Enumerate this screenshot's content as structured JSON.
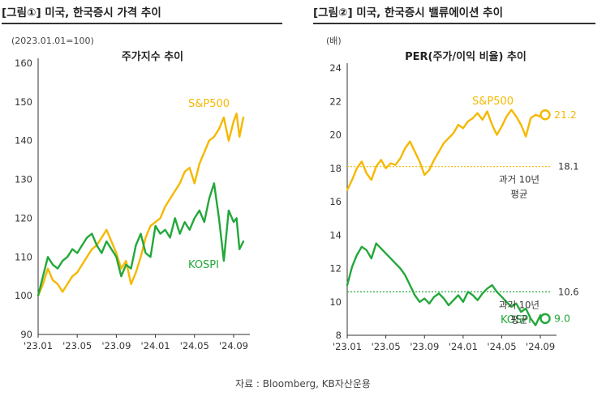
{
  "left_panel": {
    "title": "[그림①] 미국, 한국증시 가격 추이",
    "chart_data": {
      "type": "line",
      "title": "주가지수 추이",
      "unit_note": "(2023.01.01=100)",
      "ylim": [
        90,
        160
      ],
      "yticks": [
        90,
        100,
        110,
        120,
        130,
        140,
        150,
        160
      ],
      "xlim": [
        0,
        21
      ],
      "xticks": [
        {
          "x": 0,
          "label": "'23.01"
        },
        {
          "x": 4,
          "label": "'23.05"
        },
        {
          "x": 8,
          "label": "'23.09"
        },
        {
          "x": 12,
          "label": "'24.01"
        },
        {
          "x": 16,
          "label": "'24.05"
        },
        {
          "x": 20,
          "label": "'24.09"
        }
      ],
      "grid": false,
      "series": [
        {
          "name": "S&P500",
          "color": "#f5b800",
          "x": [
            0,
            0.5,
            1,
            1.5,
            2,
            2.5,
            3,
            3.5,
            4,
            4.5,
            5,
            5.5,
            6,
            6.5,
            7,
            7.5,
            8,
            8.5,
            9,
            9.5,
            10,
            10.5,
            11,
            11.5,
            12,
            12.5,
            13,
            13.5,
            14,
            14.5,
            15,
            15.5,
            16,
            16.5,
            17,
            17.5,
            18,
            18.5,
            19,
            19.5,
            20,
            20.3,
            20.6,
            21
          ],
          "values": [
            100,
            103,
            107,
            104,
            103,
            101,
            103,
            105,
            106,
            108,
            110,
            112,
            113,
            115,
            117,
            114,
            111,
            107,
            109,
            103,
            106,
            110,
            115,
            118,
            119,
            120,
            123,
            125,
            127,
            129,
            132,
            133,
            129,
            134,
            137,
            140,
            141,
            143,
            146,
            140,
            145,
            147,
            141,
            146
          ]
        },
        {
          "name": "KOSPI",
          "color": "#22a83a",
          "x": [
            0,
            0.5,
            1,
            1.5,
            2,
            2.5,
            3,
            3.5,
            4,
            4.5,
            5,
            5.5,
            6,
            6.5,
            7,
            7.5,
            8,
            8.5,
            9,
            9.5,
            10,
            10.5,
            11,
            11.5,
            12,
            12.5,
            13,
            13.5,
            14,
            14.5,
            15,
            15.5,
            16,
            16.5,
            17,
            17.5,
            18,
            18.5,
            19,
            19.5,
            20,
            20.3,
            20.6,
            21
          ],
          "values": [
            100,
            105,
            110,
            108,
            107,
            109,
            110,
            112,
            111,
            113,
            115,
            116,
            113,
            111,
            114,
            112,
            110,
            105,
            108,
            107,
            113,
            116,
            111,
            110,
            118,
            116,
            117,
            115,
            120,
            116,
            119,
            117,
            120,
            122,
            119,
            125,
            129,
            120,
            109,
            122,
            119,
            120,
            112,
            114
          ]
        }
      ]
    }
  },
  "right_panel": {
    "title": "[그림②] 미국, 한국증시 밸류에이션 추이",
    "chart_data": {
      "type": "line",
      "title": "PER(주가/이익 비율) 추이",
      "unit_note": "(배)",
      "ylim": [
        8,
        24
      ],
      "yticks": [
        8,
        10,
        12,
        14,
        16,
        18,
        20,
        22,
        24
      ],
      "xlim": [
        0,
        21
      ],
      "xticks": [
        {
          "x": 0,
          "label": "'23.01"
        },
        {
          "x": 4,
          "label": "'23.05"
        },
        {
          "x": 8,
          "label": "'23.09"
        },
        {
          "x": 12,
          "label": "'24.01"
        },
        {
          "x": 16,
          "label": "'24.05"
        },
        {
          "x": 20,
          "label": "'24.09"
        }
      ],
      "grid": false,
      "series": [
        {
          "name": "S&P500",
          "color": "#f5b800",
          "x": [
            0,
            0.5,
            1,
            1.5,
            2,
            2.5,
            3,
            3.5,
            4,
            4.5,
            5,
            5.5,
            6,
            6.5,
            7,
            7.5,
            8,
            8.5,
            9,
            9.5,
            10,
            10.5,
            11,
            11.5,
            12,
            12.5,
            13,
            13.5,
            14,
            14.5,
            15,
            15.5,
            16,
            16.5,
            17,
            17.5,
            18,
            18.5,
            19,
            19.5,
            20,
            20.5
          ],
          "values": [
            16.7,
            17.3,
            18.0,
            18.4,
            17.7,
            17.3,
            18.1,
            18.5,
            18.0,
            18.3,
            18.2,
            18.6,
            19.2,
            19.6,
            19.0,
            18.4,
            17.6,
            17.9,
            18.5,
            19.0,
            19.5,
            19.8,
            20.1,
            20.6,
            20.4,
            20.8,
            21.0,
            21.3,
            20.9,
            21.4,
            20.6,
            20.0,
            20.5,
            21.1,
            21.5,
            21.1,
            20.6,
            19.9,
            21.0,
            21.2,
            21.1,
            21.2
          ],
          "average": 18.1,
          "average_label": "18.1",
          "last_label": "21.2",
          "average_note": [
            "과거 10년",
            "평균"
          ]
        },
        {
          "name": "KOSPI",
          "color": "#22a83a",
          "x": [
            0,
            0.5,
            1,
            1.5,
            2,
            2.5,
            3,
            3.5,
            4,
            4.5,
            5,
            5.5,
            6,
            6.5,
            7,
            7.5,
            8,
            8.5,
            9,
            9.5,
            10,
            10.5,
            11,
            11.5,
            12,
            12.5,
            13,
            13.5,
            14,
            14.5,
            15,
            15.5,
            16,
            16.5,
            17,
            17.5,
            18,
            18.5,
            19,
            19.5,
            20,
            20.5
          ],
          "values": [
            11.0,
            12.1,
            12.8,
            13.3,
            13.1,
            12.6,
            13.5,
            13.2,
            12.9,
            12.6,
            12.3,
            12.0,
            11.6,
            11.0,
            10.4,
            10.0,
            10.2,
            9.9,
            10.3,
            10.5,
            10.2,
            9.8,
            10.1,
            10.4,
            10.0,
            10.6,
            10.4,
            10.1,
            10.5,
            10.8,
            11.0,
            10.6,
            10.3,
            10.0,
            9.7,
            9.9,
            9.4,
            9.6,
            9.0,
            8.6,
            9.2,
            9.0
          ],
          "average": 10.6,
          "average_label": "10.6",
          "last_label": "9.0",
          "average_note": [
            "과거 10년",
            "평균"
          ]
        }
      ]
    }
  },
  "source": "자료 : Bloomberg, KB자산운용"
}
